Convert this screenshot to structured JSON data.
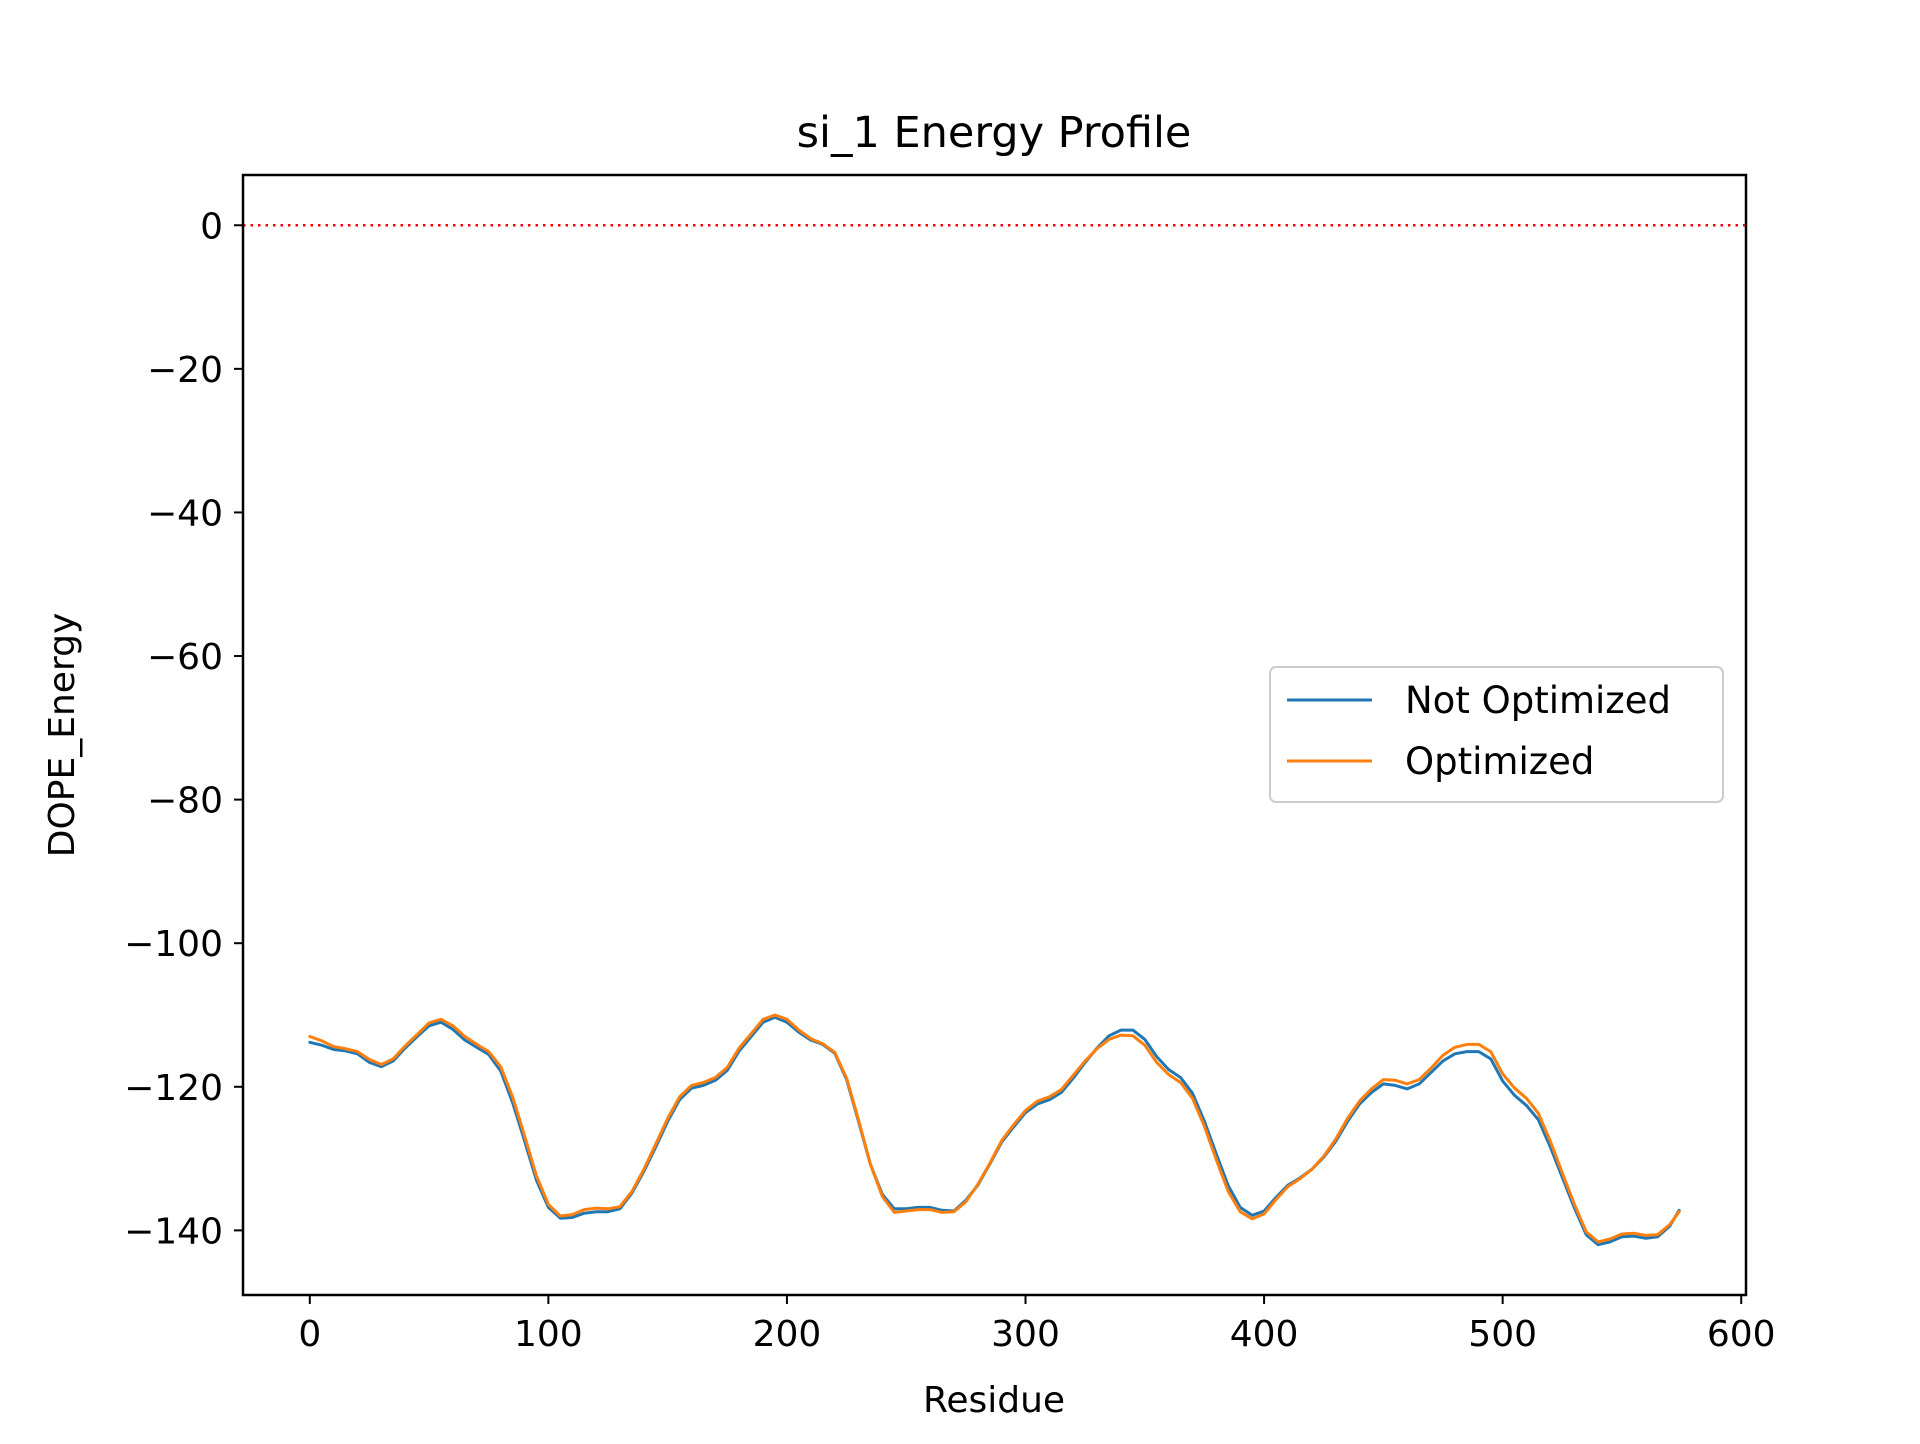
{
  "chart_data": {
    "type": "line",
    "title": "si_1 Energy Profile",
    "xlabel": "Residue",
    "ylabel": "DOPE_Energy",
    "xlim": [
      -28,
      602
    ],
    "ylim": [
      -149,
      7
    ],
    "xticks": [
      0,
      100,
      200,
      300,
      400,
      500,
      600
    ],
    "xtick_labels": [
      "0",
      "100",
      "200",
      "300",
      "400",
      "500",
      "600"
    ],
    "yticks": [
      0,
      -20,
      -40,
      -60,
      -80,
      -100,
      -120,
      -140
    ],
    "ytick_labels": [
      "0",
      "−20",
      "−40",
      "−60",
      "−80",
      "−100",
      "−120",
      "−140"
    ],
    "grid": false,
    "legend_position": "center-right",
    "reference_line": {
      "y": 0,
      "color": "#ff0000",
      "style": "dotted"
    },
    "x": [
      0,
      5,
      10,
      15,
      20,
      25,
      30,
      35,
      40,
      45,
      50,
      55,
      60,
      65,
      70,
      75,
      80,
      85,
      90,
      95,
      100,
      105,
      110,
      115,
      120,
      125,
      130,
      135,
      140,
      145,
      150,
      155,
      160,
      165,
      170,
      175,
      180,
      185,
      190,
      195,
      200,
      205,
      210,
      215,
      220,
      225,
      230,
      235,
      240,
      245,
      250,
      255,
      260,
      265,
      270,
      275,
      280,
      285,
      290,
      295,
      300,
      305,
      310,
      315,
      320,
      325,
      330,
      335,
      340,
      345,
      350,
      355,
      360,
      365,
      370,
      375,
      380,
      385,
      390,
      395,
      400,
      405,
      410,
      415,
      420,
      425,
      430,
      435,
      440,
      445,
      450,
      455,
      460,
      465,
      470,
      475,
      480,
      485,
      490,
      495,
      500,
      505,
      510,
      515,
      520,
      525,
      530,
      535,
      540,
      545,
      550,
      555,
      560,
      565,
      570,
      574
    ],
    "series": [
      {
        "name": "Not Optimized",
        "color": "#1f77b4",
        "values": [
          -113.8,
          -114.2,
          -114.8,
          -115.0,
          -115.4,
          -116.6,
          -117.2,
          -116.4,
          -114.6,
          -113.0,
          -111.5,
          -111.0,
          -112.0,
          -113.5,
          -114.5,
          -115.5,
          -117.8,
          -122.2,
          -127.5,
          -133.0,
          -136.8,
          -138.3,
          -138.2,
          -137.6,
          -137.4,
          -137.4,
          -137.0,
          -134.8,
          -131.8,
          -128.4,
          -124.8,
          -121.8,
          -120.2,
          -119.8,
          -119.1,
          -117.7,
          -115.0,
          -113.0,
          -111.0,
          -110.3,
          -111.0,
          -112.4,
          -113.5,
          -114.1,
          -115.3,
          -119.0,
          -124.8,
          -130.8,
          -135.0,
          -137.0,
          -137.0,
          -136.8,
          -136.8,
          -137.2,
          -137.3,
          -135.8,
          -133.7,
          -130.8,
          -127.7,
          -125.6,
          -123.6,
          -122.4,
          -121.8,
          -120.8,
          -118.8,
          -116.6,
          -114.6,
          -112.9,
          -112.1,
          -112.1,
          -113.4,
          -115.8,
          -117.6,
          -118.7,
          -120.9,
          -124.8,
          -129.4,
          -133.8,
          -136.8,
          -137.9,
          -137.3,
          -135.4,
          -133.7,
          -132.7,
          -131.5,
          -129.8,
          -127.6,
          -124.8,
          -122.4,
          -120.8,
          -119.6,
          -119.8,
          -120.3,
          -119.6,
          -118.0,
          -116.4,
          -115.4,
          -115.1,
          -115.1,
          -116.1,
          -119.2,
          -121.2,
          -122.6,
          -124.6,
          -128.4,
          -132.6,
          -136.8,
          -140.6,
          -142.0,
          -141.6,
          -140.9,
          -140.8,
          -141.1,
          -140.9,
          -139.4,
          -137.2
        ]
      },
      {
        "name": "Optimized",
        "color": "#ff7f0e",
        "values": [
          -113.0,
          -113.6,
          -114.4,
          -114.7,
          -115.1,
          -116.2,
          -116.9,
          -116.1,
          -114.3,
          -112.7,
          -111.1,
          -110.6,
          -111.5,
          -113.0,
          -114.1,
          -115.1,
          -117.2,
          -121.4,
          -126.8,
          -132.4,
          -136.4,
          -138.0,
          -137.8,
          -137.1,
          -136.9,
          -137.0,
          -136.7,
          -134.6,
          -131.5,
          -128.0,
          -124.4,
          -121.4,
          -119.8,
          -119.4,
          -118.7,
          -117.3,
          -114.6,
          -112.6,
          -110.6,
          -110.0,
          -110.6,
          -112.1,
          -113.3,
          -114.0,
          -115.2,
          -118.8,
          -124.6,
          -130.8,
          -135.3,
          -137.5,
          -137.3,
          -137.1,
          -137.1,
          -137.5,
          -137.4,
          -136.0,
          -133.6,
          -130.7,
          -127.5,
          -125.3,
          -123.3,
          -122.0,
          -121.4,
          -120.4,
          -118.4,
          -116.4,
          -114.7,
          -113.4,
          -112.8,
          -112.9,
          -114.2,
          -116.6,
          -118.3,
          -119.4,
          -121.6,
          -125.5,
          -130.2,
          -134.6,
          -137.4,
          -138.4,
          -137.7,
          -135.7,
          -133.9,
          -132.8,
          -131.5,
          -129.7,
          -127.3,
          -124.4,
          -122.0,
          -120.3,
          -119.0,
          -119.1,
          -119.6,
          -119.0,
          -117.4,
          -115.6,
          -114.5,
          -114.1,
          -114.1,
          -115.1,
          -118.2,
          -120.2,
          -121.6,
          -123.7,
          -127.6,
          -132.0,
          -136.3,
          -140.2,
          -141.6,
          -141.2,
          -140.5,
          -140.4,
          -140.7,
          -140.6,
          -139.2,
          -137.4
        ]
      }
    ]
  }
}
